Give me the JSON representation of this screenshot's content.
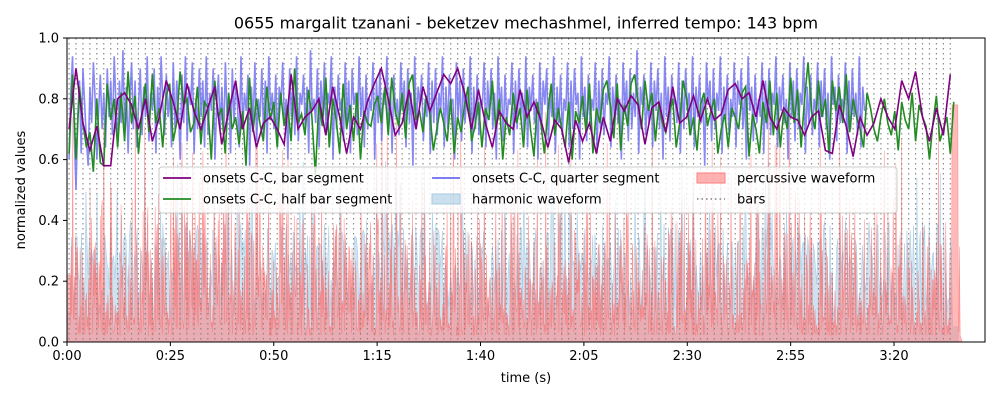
{
  "chart_data": {
    "type": "line",
    "title": "0655 margalit tzanani - beketzev mechashmel, inferred tempo: 143 bpm",
    "xlabel": "time (s)",
    "ylabel": "normalized values",
    "xlim": [
      0,
      222
    ],
    "ylim": [
      0,
      1.0
    ],
    "x_ticks": [
      {
        "value": 0,
        "label": "0:00"
      },
      {
        "value": 25,
        "label": "0:25"
      },
      {
        "value": 50,
        "label": "0:50"
      },
      {
        "value": 75,
        "label": "1:15"
      },
      {
        "value": 100,
        "label": "1:40"
      },
      {
        "value": 125,
        "label": "2:05"
      },
      {
        "value": 150,
        "label": "2:30"
      },
      {
        "value": 175,
        "label": "2:55"
      },
      {
        "value": 200,
        "label": "3:20"
      }
    ],
    "y_ticks": [
      {
        "value": 0.0,
        "label": "0.0"
      },
      {
        "value": 0.2,
        "label": "0.2"
      },
      {
        "value": 0.4,
        "label": "0.4"
      },
      {
        "value": 0.6,
        "label": "0.6"
      },
      {
        "value": 0.8,
        "label": "0.8"
      },
      {
        "value": 1.0,
        "label": "1.0"
      }
    ],
    "grid": false,
    "legend": {
      "placement": "center",
      "entries": [
        {
          "label": "onsets C-C, bar segment",
          "kind": "line",
          "color": "#800080"
        },
        {
          "label": "onsets C-C, quarter segment",
          "kind": "line",
          "color": "#6b6bf0"
        },
        {
          "label": "percussive waveform",
          "kind": "patch",
          "color": "#ff7f7f"
        },
        {
          "label": "onsets C-C, half bar segment",
          "kind": "line",
          "color": "#228b22"
        },
        {
          "label": "harmonic waveform",
          "kind": "patch",
          "color": "#a6cbe3"
        },
        {
          "label": "bars",
          "kind": "dotted",
          "color": "#808080"
        }
      ]
    },
    "tempo_bpm": 143,
    "bars": {
      "start": 0.5,
      "end": 215,
      "interval": 1.678
    },
    "series": [
      {
        "name": "onsets C-C, bar segment",
        "color": "#800080",
        "step": 1.678,
        "x_start": 0.5,
        "values": [
          0.7,
          0.9,
          0.72,
          0.63,
          0.71,
          0.58,
          0.58,
          0.8,
          0.82,
          0.78,
          0.7,
          0.8,
          0.66,
          0.74,
          0.86,
          0.79,
          0.7,
          0.85,
          0.76,
          0.7,
          0.77,
          0.84,
          0.65,
          0.76,
          0.86,
          0.7,
          0.77,
          0.64,
          0.72,
          0.74,
          0.7,
          0.65,
          0.88,
          0.7,
          0.74,
          0.76,
          0.8,
          0.68,
          0.84,
          0.74,
          0.62,
          0.74,
          0.7,
          0.79,
          0.85,
          0.9,
          0.8,
          0.68,
          0.72,
          0.83,
          0.7,
          0.84,
          0.76,
          0.82,
          0.88,
          0.85,
          0.9,
          0.82,
          0.7,
          0.83,
          0.72,
          0.64,
          0.76,
          0.72,
          0.7,
          0.83,
          0.74,
          0.79,
          0.73,
          0.64,
          0.73,
          0.7,
          0.59,
          0.73,
          0.66,
          0.72,
          0.62,
          0.74,
          0.66,
          0.8,
          0.76,
          0.81,
          0.78,
          0.65,
          0.77,
          0.79,
          0.69,
          0.84,
          0.72,
          0.74,
          0.81,
          0.73,
          0.8,
          0.73,
          0.75,
          0.83,
          0.85,
          0.8,
          0.82,
          0.74,
          0.86,
          0.74,
          0.7,
          0.77,
          0.74,
          0.73,
          0.68,
          0.74,
          0.76,
          0.63,
          0.62,
          0.78,
          0.71,
          0.61,
          0.74,
          0.68,
          0.72,
          0.8,
          0.74,
          0.7,
          0.86,
          0.8,
          0.89,
          0.74,
          0.66,
          0.77,
          0.68,
          0.88,
          0.76,
          0.68,
          0.74,
          0.86,
          0.66,
          0.75,
          0.7,
          0.78,
          0.77
        ]
      },
      {
        "name": "onsets C-C, half bar segment",
        "color": "#228b22",
        "step": 0.839,
        "x_start": 0.5,
        "values": [
          0.62,
          0.88,
          0.6,
          0.84,
          0.72,
          0.64,
          0.69,
          0.56,
          0.8,
          0.59,
          0.58,
          0.85,
          0.73,
          0.8,
          0.64,
          0.82,
          0.66,
          0.89,
          0.72,
          0.81,
          0.62,
          0.75,
          0.85,
          0.69,
          0.88,
          0.72,
          0.77,
          0.64,
          0.81,
          0.85,
          0.66,
          0.72,
          0.89,
          0.78,
          0.8,
          0.69,
          0.72,
          0.84,
          0.65,
          0.79,
          0.77,
          0.6,
          0.86,
          0.74,
          0.77,
          0.62,
          0.82,
          0.7,
          0.74,
          0.65,
          0.76,
          0.58,
          0.87,
          0.69,
          0.8,
          0.72,
          0.66,
          0.84,
          0.73,
          0.79,
          0.64,
          0.82,
          0.71,
          0.78,
          0.66,
          0.9,
          0.72,
          0.75,
          0.68,
          0.83,
          0.74,
          0.55,
          0.79,
          0.71,
          0.87,
          0.64,
          0.8,
          0.73,
          0.62,
          0.85,
          0.7,
          0.78,
          0.66,
          0.82,
          0.6,
          0.76,
          0.72,
          0.71,
          0.78,
          0.81,
          0.72,
          0.84,
          0.68,
          0.87,
          0.76,
          0.71,
          0.82,
          0.67,
          0.85,
          0.88,
          0.73,
          0.76,
          0.69,
          0.81,
          0.75,
          0.63,
          0.7,
          0.77,
          0.72,
          0.66,
          0.8,
          0.62,
          0.74,
          0.69,
          0.78,
          0.84,
          0.66,
          0.71,
          0.79,
          0.64,
          0.77,
          0.73,
          0.86,
          0.7,
          0.8,
          0.6,
          0.74,
          0.68,
          0.82,
          0.72,
          0.77,
          0.64,
          0.83,
          0.7,
          0.61,
          0.79,
          0.72,
          0.62,
          0.76,
          0.85,
          0.68,
          0.77,
          0.7,
          0.64,
          0.79,
          0.6,
          0.76,
          0.72,
          0.81,
          0.69,
          0.85,
          0.62,
          0.77,
          0.72,
          0.83,
          0.86,
          0.78,
          0.67,
          0.85,
          0.63,
          0.78,
          0.71,
          0.85,
          0.88,
          0.79,
          0.7,
          0.86,
          0.76,
          0.82,
          0.66,
          0.79,
          0.72,
          0.69,
          0.75,
          0.8,
          0.64,
          0.72,
          0.86,
          0.8,
          0.68,
          0.74,
          0.63,
          0.78,
          0.82,
          0.71,
          0.76,
          0.8,
          0.62,
          0.7,
          0.75,
          0.64,
          0.77,
          0.74,
          0.7,
          0.82,
          0.84,
          0.61,
          0.75,
          0.7,
          0.62,
          0.79,
          0.72,
          0.86,
          0.68,
          0.82,
          0.64,
          0.76,
          0.7,
          0.87,
          0.72,
          0.83,
          0.64,
          0.8,
          0.92,
          0.76,
          0.7,
          0.86,
          0.74,
          0.8,
          0.62,
          0.86,
          0.76,
          0.84,
          0.72,
          0.88,
          0.69,
          0.8,
          0.74,
          0.7,
          0.64,
          0.82,
          0.77,
          0.7,
          0.66,
          0.74,
          0.8,
          0.72,
          0.68,
          0.76,
          0.63,
          0.79,
          0.73,
          0.7,
          0.82,
          0.66,
          0.78,
          0.74,
          0.71,
          0.6,
          0.72,
          0.81,
          0.66,
          0.7,
          0.74,
          0.62,
          0.79,
          0.7,
          0.64,
          0.76,
          0.86,
          0.72,
          0.9,
          0.78,
          0.68,
          0.84,
          0.72,
          0.8,
          0.88,
          0.66,
          0.78,
          0.74,
          0.85,
          0.72,
          0.8,
          0.62,
          0.76,
          0.88,
          0.7,
          0.78,
          0.82,
          0.66,
          0.76,
          0.88,
          0.72,
          0.84,
          0.6,
          0.8,
          0.73,
          0.66,
          0.78,
          0.76
        ]
      },
      {
        "name": "onsets C-C, quarter segment",
        "color": "#6b6bf0",
        "step": 0.42,
        "x_start": 0.5,
        "values": [
          0.6,
          0.82,
          0.94,
          0.68,
          0.5,
          0.74,
          0.86,
          0.62,
          0.9,
          0.78,
          0.66,
          0.58,
          0.84,
          0.72,
          0.92,
          0.8,
          0.6,
          0.76,
          0.88,
          0.7,
          0.82,
          0.64,
          0.9,
          0.74,
          0.86,
          0.68,
          0.94,
          0.78,
          0.64,
          0.86,
          0.72,
          0.96,
          0.7,
          0.84,
          0.62,
          0.8,
          0.92,
          0.7,
          0.86,
          0.64,
          0.78,
          0.9,
          0.68,
          0.84,
          0.74,
          0.94,
          0.66,
          0.82,
          0.76,
          0.9,
          0.62,
          0.84,
          0.72,
          0.94,
          0.78,
          0.68,
          0.88,
          0.74,
          0.82,
          0.64,
          0.92,
          0.7,
          0.86,
          0.76,
          0.6,
          0.88,
          0.72,
          0.94,
          0.66,
          0.84,
          0.78,
          0.92,
          0.62,
          0.8,
          0.7,
          0.9,
          0.74,
          0.86,
          0.64,
          0.94,
          0.68,
          0.82,
          0.76,
          0.9,
          0.6,
          0.78,
          0.88,
          0.7,
          0.84,
          0.66,
          0.92,
          0.74,
          0.8,
          0.62,
          0.9,
          0.72,
          0.86,
          0.78,
          0.64,
          0.94,
          0.7,
          0.82,
          0.76,
          0.88,
          0.58,
          0.84,
          0.72,
          0.92,
          0.66,
          0.8,
          0.74,
          0.9,
          0.68,
          0.86,
          0.62,
          0.94,
          0.76,
          0.82,
          0.7,
          0.88,
          0.64,
          0.84,
          0.78,
          0.92,
          0.72,
          0.8,
          0.6,
          0.9,
          0.74,
          0.86,
          0.68,
          0.94,
          0.66,
          0.82,
          0.78,
          0.88,
          0.7,
          0.84,
          0.62,
          0.96,
          0.76,
          0.8,
          0.72,
          0.9,
          0.64,
          0.86,
          0.74,
          0.92,
          0.68,
          0.82,
          0.78,
          0.94,
          0.6,
          0.84,
          0.7,
          0.88,
          0.76,
          0.8,
          0.66,
          0.92,
          0.72,
          0.86,
          0.62,
          0.9,
          0.78,
          0.82,
          0.68,
          0.94,
          0.74,
          0.84,
          0.64,
          0.88,
          0.7,
          0.8,
          0.76,
          0.92,
          0.6,
          0.86,
          0.72,
          0.9,
          0.66,
          0.82,
          0.78,
          0.94,
          0.7,
          0.84,
          0.62,
          0.88,
          0.74,
          0.8,
          0.68,
          0.92,
          0.76,
          0.86,
          0.64,
          0.9,
          0.72,
          0.82,
          0.58,
          0.94,
          0.7,
          0.84,
          0.78,
          0.88,
          0.66,
          0.8,
          0.74,
          0.92,
          0.62,
          0.86,
          0.72,
          0.9,
          0.68,
          0.82,
          0.76,
          0.94,
          0.64,
          0.84,
          0.7,
          0.88,
          0.78,
          0.8,
          0.6,
          0.92,
          0.74,
          0.86,
          0.66,
          0.9,
          0.72,
          0.82,
          0.76,
          0.94,
          0.62,
          0.84,
          0.7,
          0.88,
          0.68,
          0.8,
          0.78,
          0.92,
          0.64,
          0.86,
          0.74,
          0.9,
          0.7,
          0.82,
          0.6,
          0.94,
          0.76,
          0.84,
          0.66,
          0.88,
          0.72,
          0.8,
          0.78,
          0.92,
          0.62,
          0.86,
          0.7,
          0.9,
          0.74,
          0.82,
          0.68,
          0.94,
          0.64,
          0.84,
          0.76,
          0.88,
          0.72,
          0.8,
          0.6,
          0.92,
          0.7,
          0.86,
          0.78,
          0.9,
          0.66,
          0.82,
          0.74,
          0.94,
          0.62,
          0.84,
          0.72,
          0.88,
          0.68,
          0.8,
          0.76,
          0.92,
          0.64,
          0.86,
          0.7,
          0.9,
          0.78,
          0.82,
          0.6,
          0.94,
          0.74,
          0.84,
          0.66,
          0.88,
          0.72,
          0.8,
          0.76,
          0.92,
          0.62,
          0.86,
          0.7,
          0.9,
          0.68,
          0.82,
          0.78,
          0.94,
          0.64,
          0.84,
          0.74,
          0.88,
          0.72,
          0.8,
          0.6,
          0.92,
          0.76,
          0.86,
          0.66,
          0.9,
          0.7,
          0.82,
          0.74,
          0.96,
          0.62,
          0.84,
          0.78,
          0.88,
          0.68,
          0.8,
          0.72,
          0.92,
          0.64,
          0.86,
          0.76,
          0.9,
          0.7,
          0.82,
          0.6,
          0.94,
          0.74,
          0.84,
          0.66,
          0.88,
          0.78,
          0.8,
          0.72,
          0.92,
          0.62,
          0.86,
          0.7,
          0.9,
          0.76,
          0.82,
          0.68,
          0.94,
          0.64,
          0.84,
          0.74,
          0.88,
          0.72,
          0.8,
          0.58,
          0.92,
          0.78,
          0.86,
          0.66,
          0.9,
          0.7,
          0.82,
          0.76,
          0.94,
          0.62,
          0.84,
          0.72,
          0.88,
          0.68,
          0.8,
          0.74,
          0.92,
          0.64,
          0.86,
          0.78,
          0.9,
          0.7,
          0.82,
          0.6,
          0.94,
          0.76,
          0.84,
          0.66,
          0.88,
          0.72,
          0.8,
          0.74,
          0.92,
          0.62,
          0.86,
          0.7,
          0.9,
          0.68,
          0.82,
          0.78,
          0.94,
          0.64,
          0.84,
          0.76,
          0.88,
          0.72,
          0.8,
          0.6,
          0.92,
          0.74,
          0.86,
          0.66,
          0.9,
          0.7,
          0.82,
          0.78,
          0.94,
          0.62,
          0.84,
          0.72,
          0.88,
          0.68,
          0.8,
          0.76,
          0.92,
          0.64,
          0.86,
          0.74,
          0.9,
          0.7,
          0.82,
          0.6,
          0.94,
          0.78,
          0.84,
          0.66,
          0.88,
          0.72,
          0.8,
          0.76,
          0.92,
          0.62,
          0.86,
          0.7,
          0.9,
          0.74,
          0.82,
          0.68,
          0.94,
          0.64,
          0.84,
          0.76
        ]
      }
    ]
  }
}
